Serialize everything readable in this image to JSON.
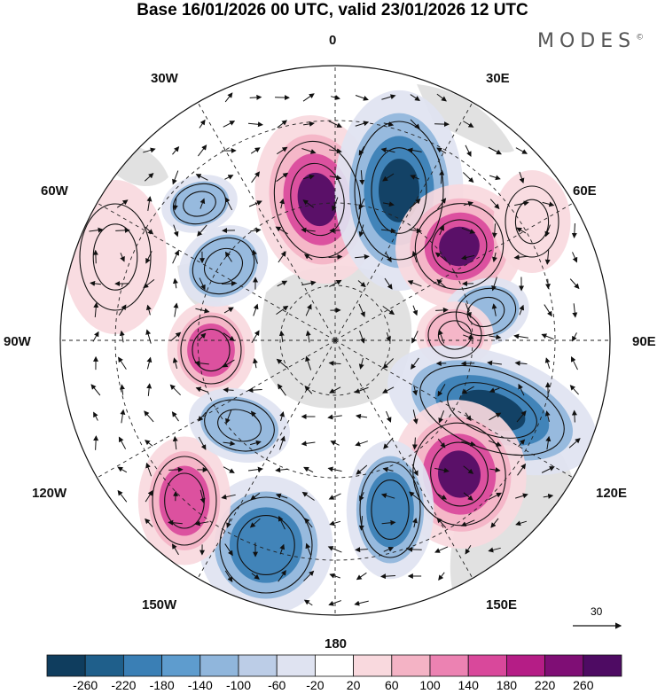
{
  "title": "Base 16/01/2026 00 UTC, valid 23/01/2026 12 UTC",
  "brand": "MODES",
  "brand_mark": "©",
  "longitude_labels": {
    "lon_0": "0",
    "lon_30e": "30E",
    "lon_60e": "60E",
    "lon_90e": "90E",
    "lon_120e": "120E",
    "lon_150e": "150E",
    "lon_180": "180",
    "lon_150w": "150W",
    "lon_120w": "120W",
    "lon_90w": "90W",
    "lon_60w": "60W",
    "lon_30w": "30W"
  },
  "reference_vector": {
    "label": "30"
  },
  "colorbar": {
    "ticks": [
      "-260",
      "-220",
      "-180",
      "-140",
      "-100",
      "-60",
      "-20",
      "20",
      "60",
      "100",
      "140",
      "180",
      "220",
      "260"
    ],
    "colors": [
      "#0f3d5e",
      "#1f5f8b",
      "#3a7fb5",
      "#5e9cce",
      "#90b6dc",
      "#bccde7",
      "#dfe3f1",
      "#ffffff",
      "#f9d9de",
      "#f4b3c5",
      "#ec82b2",
      "#d9489b",
      "#b51d86",
      "#7f0e75",
      "#4e0b63"
    ]
  },
  "anomaly_colors": {
    "neg_strong": "#0f3d5e",
    "neg_mid": "#3a7fb5",
    "neg_weak": "#90b6dc",
    "neg_faint": "#dfe3f1",
    "pos_faint": "#f9d9de",
    "pos_weak": "#f4b3c5",
    "pos_mid": "#d9489b",
    "pos_strong": "#4e0b63",
    "land": "#c8c8c8"
  }
}
